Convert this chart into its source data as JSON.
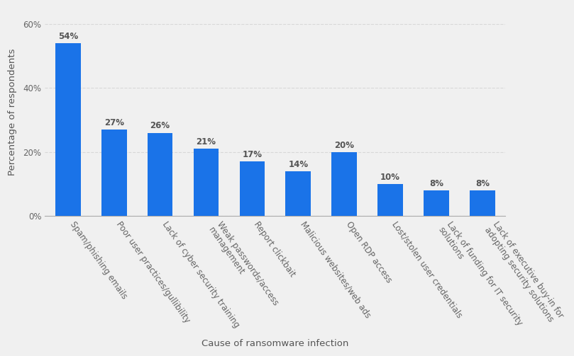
{
  "categories": [
    "Spam/phishing emails",
    "Poor user practices/gullibility",
    "Lack of cyber security training",
    "Weak passwords/access\nmanagement",
    "Report clickbait",
    "Malicious websites/web ads",
    "Open RDP access",
    "Lost/stolen user credentials",
    "Lack of funding for IT security\nsolutions",
    "Lack of executive buy-in for\nadopting security solutions"
  ],
  "values": [
    54,
    27,
    26,
    21,
    17,
    14,
    20,
    10,
    8,
    8
  ],
  "bar_color": "#1a73e8",
  "bar_edge_color": "none",
  "background_color": "#f0f0f0",
  "plot_bg_color": "#f0f0f0",
  "ylabel": "Percentage of respondents",
  "xlabel": "Cause of ransomware infection",
  "ylim": [
    0,
    65
  ],
  "yticks": [
    0,
    20,
    40,
    60
  ],
  "ytick_labels": [
    "0%",
    "20%",
    "40%",
    "60%"
  ],
  "label_fontsize": 8.5,
  "axis_label_fontsize": 9.5,
  "value_label_fontsize": 8.5,
  "grid_color": "#d8d8d8",
  "tick_label_color": "#666666",
  "axis_label_color": "#555555",
  "value_label_color": "#555555"
}
